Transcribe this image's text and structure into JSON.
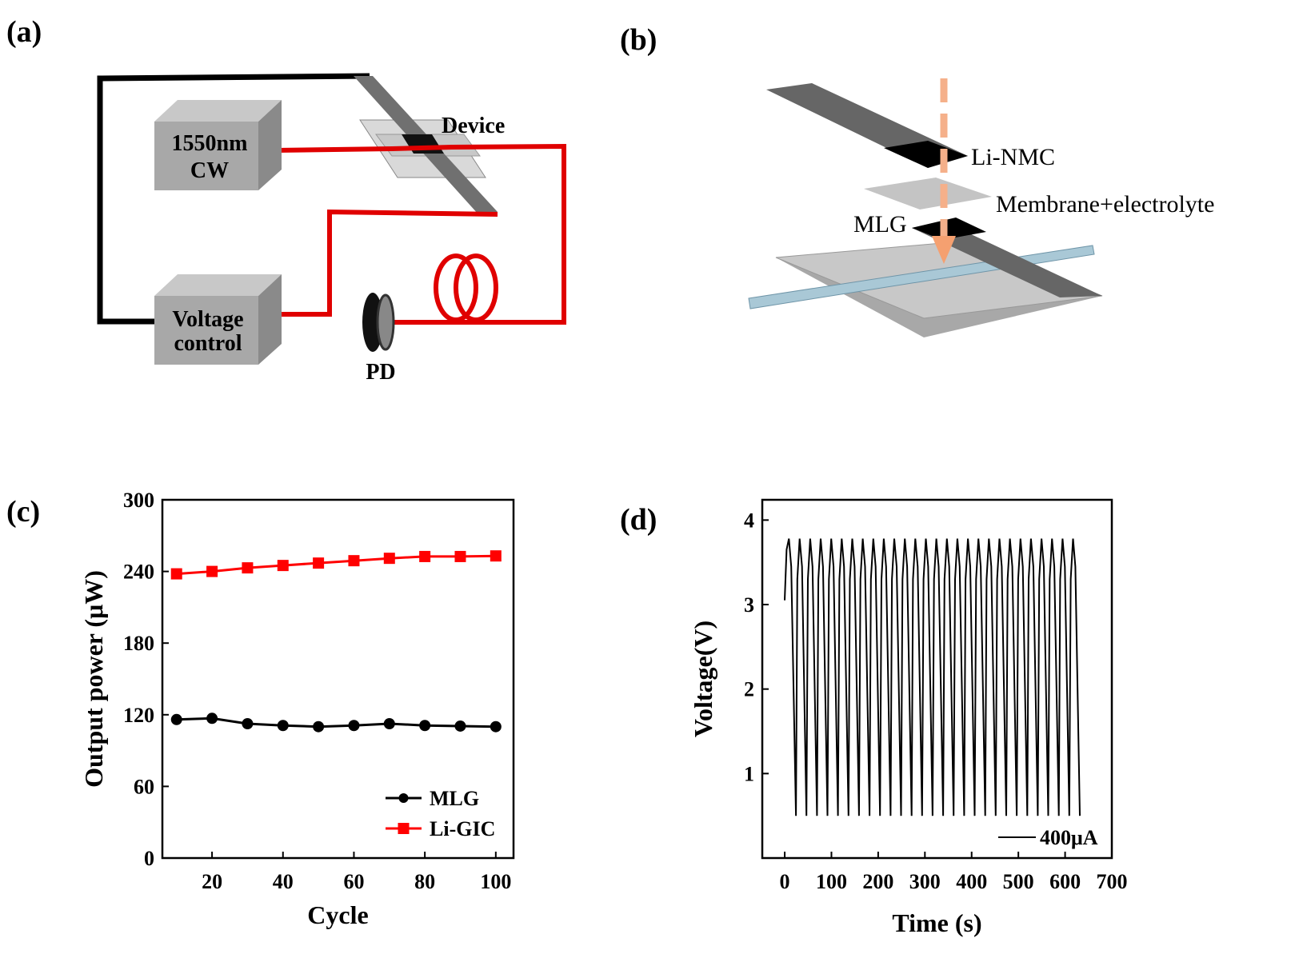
{
  "panel_labels": [
    "(a)",
    "(b)",
    "(c)",
    "(d)"
  ],
  "diagram_a": {
    "source": [
      "1550nm",
      "CW"
    ],
    "device": "Device",
    "controller": [
      "Voltage",
      "control"
    ],
    "detector": "PD"
  },
  "diagram_b": {
    "top_electrode": "Li-NMC",
    "separator": "Membrane+electrolyte",
    "bottom_electrode": "MLG"
  },
  "chart_data": [
    {
      "type": "line",
      "x_label": "Cycle",
      "y_label": "Output power (μW)",
      "x": [
        10,
        20,
        30,
        40,
        50,
        60,
        70,
        80,
        90,
        100
      ],
      "xlim": [
        6,
        105
      ],
      "xticks": [
        20,
        40,
        60,
        80,
        100
      ],
      "ylim": [
        0,
        300
      ],
      "yticks": [
        0,
        60,
        120,
        180,
        240,
        300
      ],
      "legend": "lower right",
      "series": [
        {
          "name": "MLG",
          "color": "#000000",
          "marker": "circle",
          "values": [
            116,
            117,
            112.5,
            111,
            110,
            111,
            112.5,
            111,
            110.5,
            110
          ]
        },
        {
          "name": "Li-GIC",
          "color": "#ff0000",
          "marker": "square",
          "values": [
            238,
            240,
            243,
            245,
            247,
            249,
            251,
            252.5,
            252.5,
            253
          ]
        }
      ]
    },
    {
      "type": "line",
      "x_label": "Time (s)",
      "y_label": "Voltage(V)",
      "annotation": "400μA",
      "xlim": [
        -48,
        700
      ],
      "xticks": [
        0,
        100,
        200,
        300,
        400,
        500,
        600,
        700
      ],
      "ylim": [
        0,
        4.24
      ],
      "yticks": [
        1,
        2,
        3,
        4
      ],
      "series": [
        {
          "color": "#000000",
          "x": [
            0,
            4,
            9,
            14,
            24,
            27,
            32,
            37,
            46.5,
            49.5,
            54.5,
            59.5,
            69,
            72,
            77,
            82,
            91.5,
            94.5,
            99.5,
            104.5,
            114,
            117,
            122,
            127,
            136.5,
            139.5,
            144.5,
            149.5,
            159,
            162,
            167,
            172,
            181.5,
            184.5,
            189.5,
            194.5,
            204,
            207,
            212,
            217,
            226.5,
            229.5,
            234.5,
            239.5,
            249,
            252,
            257,
            262,
            271.5,
            274.5,
            279.5,
            284.5,
            294,
            297,
            302,
            307,
            316.5,
            319.5,
            324.5,
            329.5,
            339,
            342,
            347,
            352,
            361.5,
            364.5,
            369.5,
            374.5,
            384,
            387,
            392,
            397,
            406.5,
            409.5,
            414.5,
            419.5,
            429,
            432,
            437,
            442,
            451.5,
            454.5,
            459.5,
            464.5,
            474,
            477,
            482,
            487,
            496.5,
            499.5,
            504.5,
            509.5,
            519,
            522,
            527,
            532,
            541.5,
            544.5,
            549.5,
            554.5,
            564,
            567,
            572,
            577,
            586.5,
            589.5,
            594.5,
            599.5,
            609,
            612,
            617,
            622,
            631.5
          ],
          "values": [
            3.05,
            3.65,
            3.78,
            3.45,
            0.5,
            3.3,
            3.78,
            3.45,
            0.5,
            3.3,
            3.78,
            3.45,
            0.5,
            3.3,
            3.78,
            3.45,
            0.5,
            3.3,
            3.78,
            3.45,
            0.5,
            3.3,
            3.78,
            3.45,
            0.5,
            3.3,
            3.78,
            3.45,
            0.5,
            3.3,
            3.78,
            3.45,
            0.5,
            3.3,
            3.78,
            3.45,
            0.5,
            3.3,
            3.78,
            3.45,
            0.5,
            3.3,
            3.78,
            3.45,
            0.5,
            3.3,
            3.78,
            3.45,
            0.5,
            3.3,
            3.78,
            3.45,
            0.5,
            3.3,
            3.78,
            3.45,
            0.5,
            3.3,
            3.78,
            3.45,
            0.5,
            3.3,
            3.78,
            3.45,
            0.5,
            3.3,
            3.78,
            3.45,
            0.5,
            3.3,
            3.78,
            3.45,
            0.5,
            3.3,
            3.78,
            3.45,
            0.5,
            3.3,
            3.78,
            3.45,
            0.5,
            3.3,
            3.78,
            3.45,
            0.5,
            3.3,
            3.78,
            3.45,
            0.5,
            3.3,
            3.78,
            3.45,
            0.5,
            3.3,
            3.78,
            3.45,
            0.5,
            3.3,
            3.78,
            3.45,
            0.5,
            3.3,
            3.78,
            3.45,
            0.5,
            3.3,
            3.78,
            3.45,
            0.5,
            3.3,
            3.78,
            3.45,
            0.5
          ]
        }
      ]
    }
  ]
}
